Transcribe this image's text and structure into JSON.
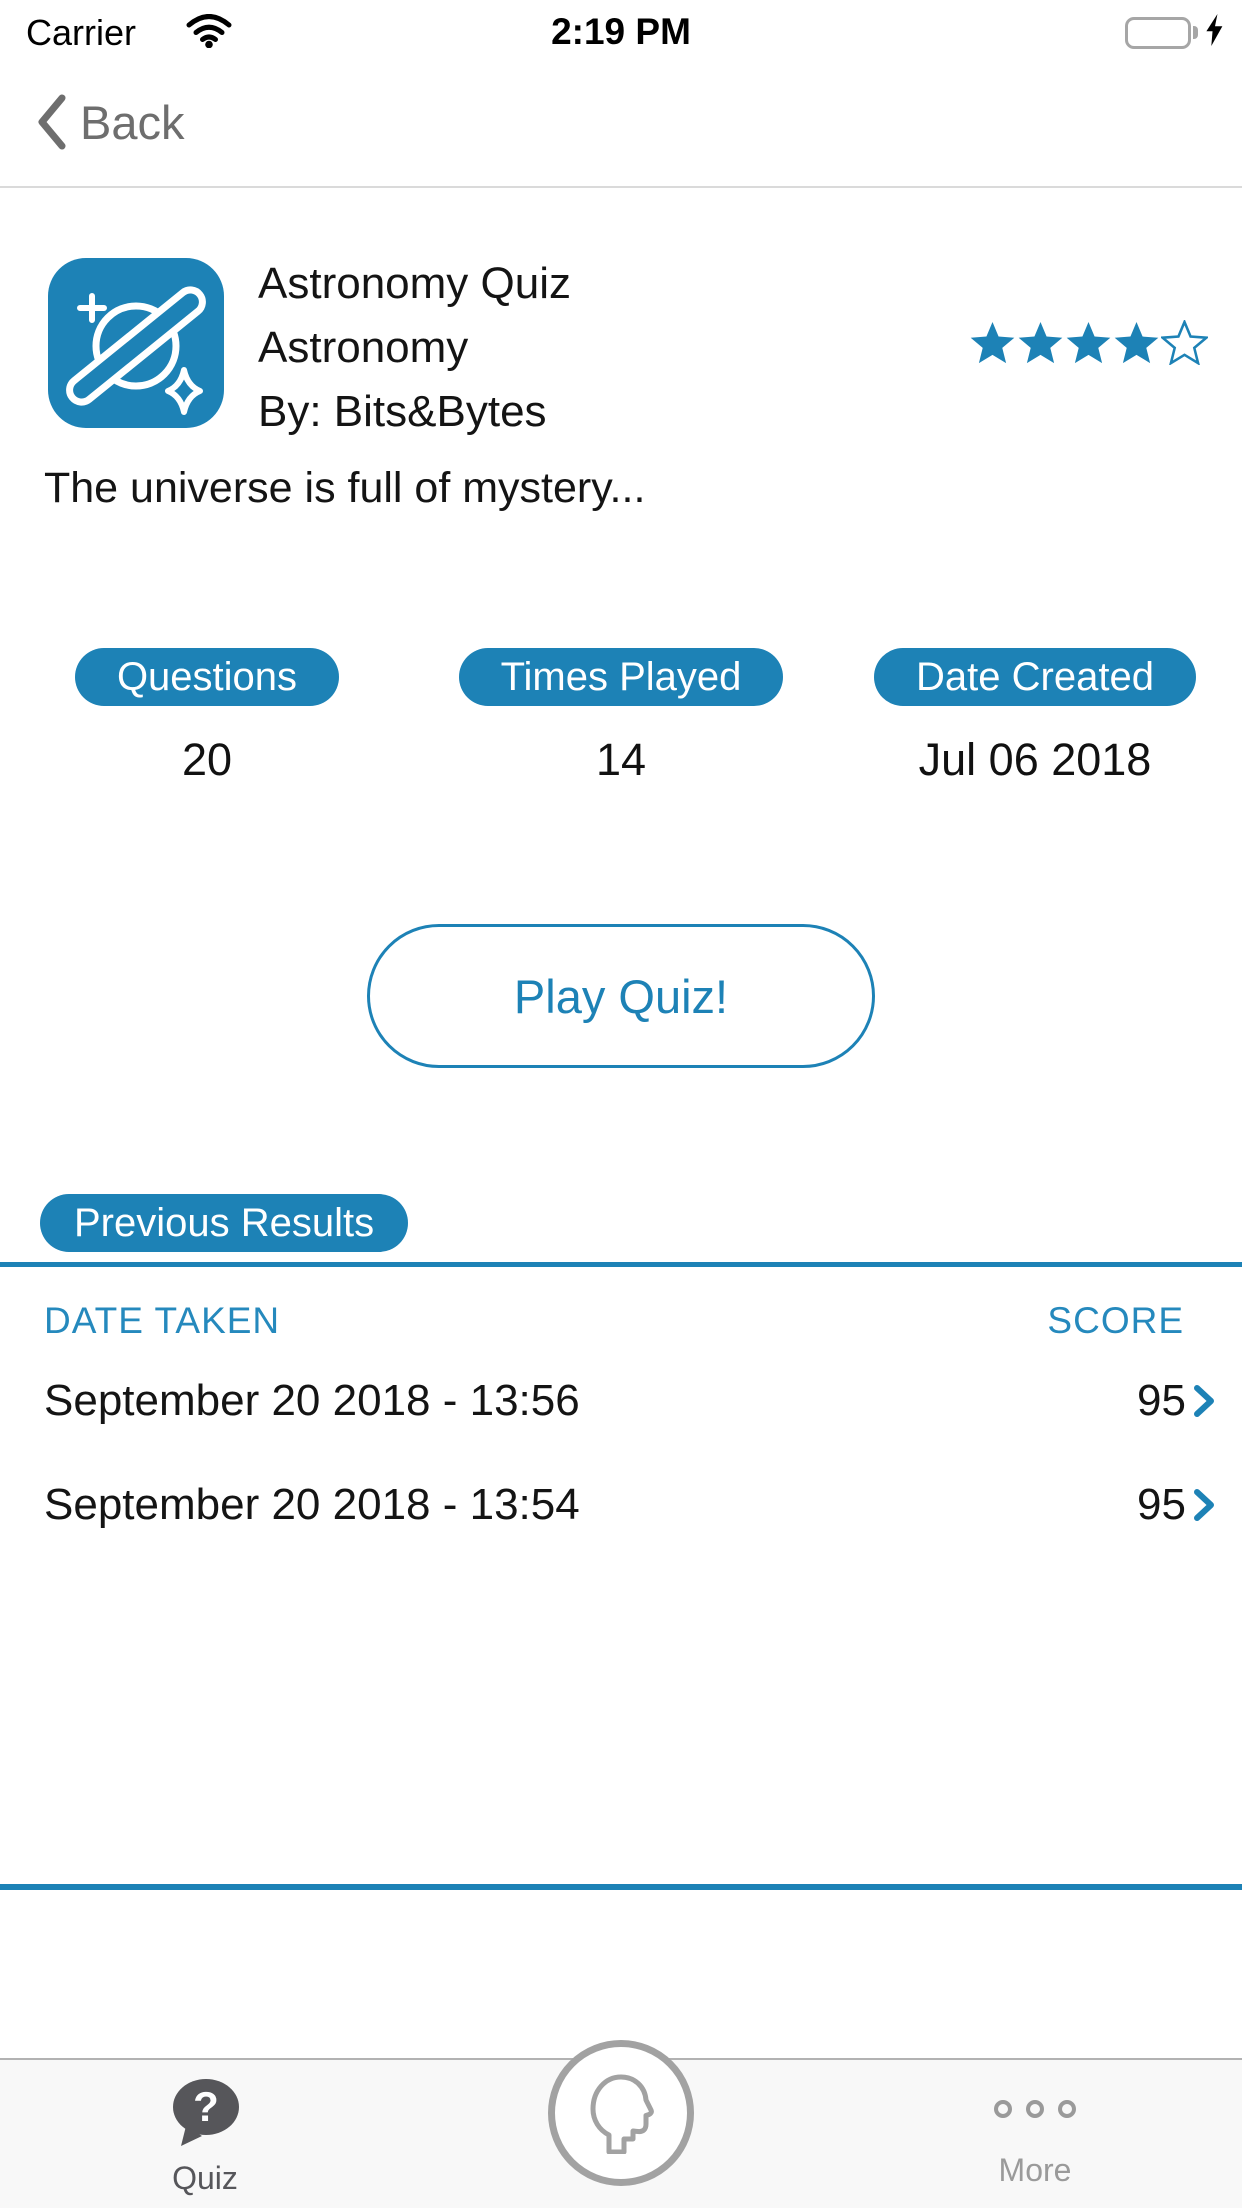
{
  "status_bar": {
    "carrier": "Carrier",
    "time": "2:19 PM"
  },
  "nav": {
    "back_label": "Back"
  },
  "quiz": {
    "title": "Astronomy Quiz",
    "category": "Astronomy",
    "author": "By: Bits&Bytes",
    "description": "The universe is full of mystery...",
    "rating": 4,
    "rating_max": 5,
    "stats": [
      {
        "label": "Questions",
        "value": "20"
      },
      {
        "label": "Times Played",
        "value": "14"
      },
      {
        "label": "Date Created",
        "value": "Jul 06 2018"
      }
    ],
    "play_button": "Play Quiz!"
  },
  "results": {
    "section_label": "Previous Results",
    "columns": {
      "date": "DATE TAKEN",
      "score": "SCORE"
    },
    "rows": [
      {
        "date": "September 20 2018 - 13:56",
        "score": "95"
      },
      {
        "date": "September 20 2018 - 13:54",
        "score": "95"
      }
    ]
  },
  "tab_bar": {
    "quiz_label": "Quiz",
    "quiz_icon_glyph": "?",
    "more_label": "More"
  },
  "colors": {
    "accent": "#1d82b6",
    "tab_active": "#56565a",
    "tab_inactive": "#9a9a9a",
    "battery_green": "#53d769"
  }
}
